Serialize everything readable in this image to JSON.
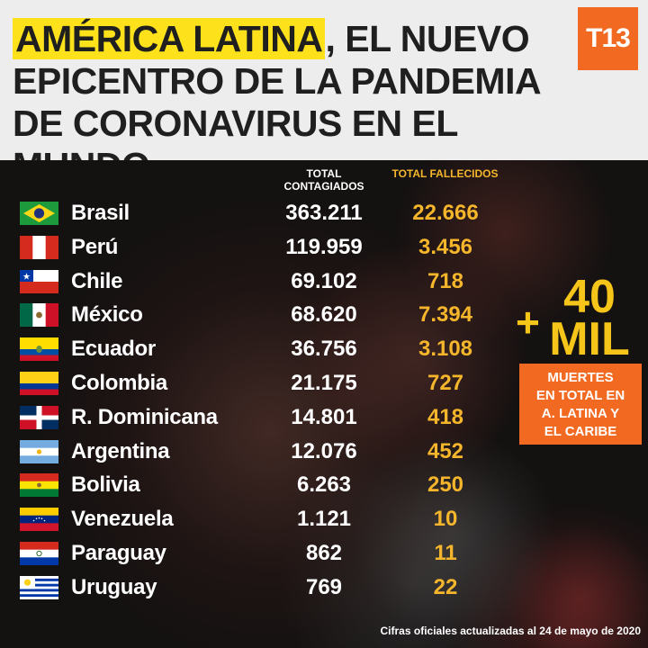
{
  "header": {
    "title_highlight": "AMÉRICA LATINA",
    "title_rest": ", EL NUEVO EPICENTRO DE LA PANDEMIA DE CORONAVIRUS EN EL MUNDO",
    "logo_text": "T13"
  },
  "columns": {
    "infected": "TOTAL CONTAGIADOS",
    "deaths": "TOTAL FALLECIDOS"
  },
  "countries": [
    {
      "name": "Brasil",
      "infected": "363.211",
      "deaths": "22.666",
      "flag": "brazil-flag-icon"
    },
    {
      "name": "Perú",
      "infected": "119.959",
      "deaths": "3.456",
      "flag": "peru-flag-icon"
    },
    {
      "name": "Chile",
      "infected": "69.102",
      "deaths": "718",
      "flag": "chile-flag-icon"
    },
    {
      "name": "México",
      "infected": "68.620",
      "deaths": "7.394",
      "flag": "mexico-flag-icon"
    },
    {
      "name": "Ecuador",
      "infected": "36.756",
      "deaths": "3.108",
      "flag": "ecuador-flag-icon"
    },
    {
      "name": "Colombia",
      "infected": "21.175",
      "deaths": "727",
      "flag": "colombia-flag-icon"
    },
    {
      "name": "R. Dominicana",
      "infected": "14.801",
      "deaths": "418",
      "flag": "dominican-republic-flag-icon"
    },
    {
      "name": "Argentina",
      "infected": "12.076",
      "deaths": "452",
      "flag": "argentina-flag-icon"
    },
    {
      "name": "Bolivia",
      "infected": "6.263",
      "deaths": "250",
      "flag": "bolivia-flag-icon"
    },
    {
      "name": "Venezuela",
      "infected": "1.121",
      "deaths": "10",
      "flag": "venezuela-flag-icon"
    },
    {
      "name": "Paraguay",
      "infected": "862",
      "deaths": "11",
      "flag": "paraguay-flag-icon"
    },
    {
      "name": "Uruguay",
      "infected": "769",
      "deaths": "22",
      "flag": "uruguay-flag-icon"
    }
  ],
  "summary": {
    "plus": "+",
    "number": "40",
    "unit": "MIL",
    "caption": "MUERTES\nEN TOTAL EN\nA. LATINA Y\nEL CARIBE"
  },
  "footer": "Cifras oficiales actualizadas al 24 de mayo de 2020",
  "colors": {
    "highlight": "#fde21b",
    "accent_orange": "#f26a22",
    "deaths_yellow": "#f5b62b"
  }
}
